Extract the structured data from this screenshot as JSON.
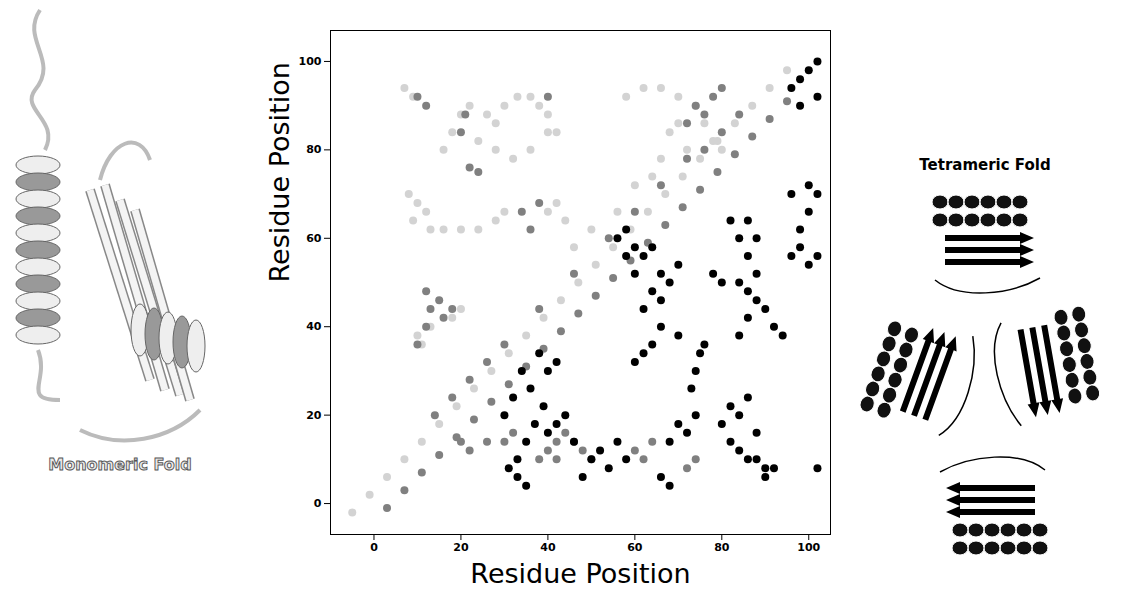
{
  "chart_data": {
    "type": "scatter",
    "xlabel": "Residue Position",
    "ylabel": "Residue Position",
    "xlim": [
      -10,
      105
    ],
    "ylim": [
      -7,
      107
    ],
    "xticks": [
      0,
      20,
      40,
      60,
      80,
      100
    ],
    "yticks": [
      0,
      20,
      40,
      60,
      80,
      100
    ],
    "series": [
      {
        "color": "#d3d3d3",
        "x": [
          -5,
          -1,
          3,
          7,
          11,
          15,
          19,
          23,
          27,
          31,
          35,
          39,
          43,
          47,
          51,
          55,
          59,
          63,
          67,
          71,
          75,
          79,
          83,
          87,
          91,
          95,
          8,
          10,
          12,
          9,
          13,
          16,
          20,
          24,
          28,
          30,
          10,
          11,
          13,
          16,
          18,
          20,
          22,
          26,
          28,
          30,
          33,
          36,
          38,
          40,
          24,
          28,
          32,
          36,
          40,
          42,
          40,
          42,
          44,
          58,
          62,
          66,
          70,
          74,
          76,
          78,
          80,
          70,
          72,
          64,
          66,
          68,
          60,
          56,
          50,
          46,
          18,
          20,
          7,
          9
        ],
        "y": [
          -2,
          2,
          6,
          10,
          14,
          18,
          22,
          26,
          30,
          34,
          38,
          42,
          46,
          50,
          54,
          58,
          62,
          66,
          70,
          74,
          78,
          82,
          86,
          90,
          94,
          98,
          70,
          68,
          66,
          64,
          62,
          62,
          62,
          62,
          64,
          66,
          38,
          36,
          40,
          80,
          84,
          88,
          90,
          88,
          86,
          90,
          92,
          92,
          90,
          88,
          82,
          80,
          78,
          80,
          84,
          84,
          66,
          68,
          64,
          92,
          94,
          94,
          92,
          90,
          86,
          82,
          80,
          86,
          80,
          74,
          78,
          84,
          72,
          66,
          62,
          58,
          42,
          44,
          94,
          92
        ]
      },
      {
        "color": "#808080",
        "x": [
          3,
          7,
          11,
          15,
          19,
          23,
          27,
          31,
          35,
          39,
          43,
          47,
          51,
          55,
          59,
          63,
          67,
          71,
          75,
          79,
          83,
          87,
          91,
          95,
          14,
          18,
          22,
          26,
          30,
          38,
          46,
          54,
          60,
          66,
          72,
          76,
          80,
          84,
          10,
          12,
          13,
          15,
          12,
          16,
          18,
          10,
          12,
          20,
          21,
          22,
          34,
          38,
          36,
          40,
          24,
          72,
          74,
          78,
          80,
          76,
          40,
          42,
          44,
          46,
          48,
          38,
          42,
          50,
          60,
          62,
          64,
          72,
          74,
          30,
          32,
          26,
          22,
          20
        ],
        "y": [
          -1,
          3,
          7,
          11,
          15,
          19,
          23,
          27,
          31,
          35,
          39,
          43,
          47,
          51,
          55,
          59,
          63,
          67,
          71,
          75,
          79,
          83,
          87,
          91,
          20,
          24,
          28,
          32,
          36,
          44,
          52,
          60,
          66,
          72,
          78,
          80,
          84,
          88,
          36,
          40,
          44,
          46,
          48,
          42,
          44,
          92,
          90,
          84,
          88,
          76,
          66,
          68,
          62,
          92,
          75,
          86,
          90,
          92,
          94,
          88,
          12,
          14,
          16,
          14,
          12,
          10,
          10,
          10,
          12,
          10,
          14,
          8,
          10,
          14,
          16,
          14,
          12,
          14
        ]
      },
      {
        "color": "#000000",
        "x": [
          31,
          33,
          35,
          33,
          35,
          37,
          39,
          36,
          40,
          38,
          42,
          34,
          30,
          32,
          40,
          42,
          44,
          46,
          50,
          52,
          54,
          56,
          58,
          48,
          66,
          68,
          60,
          62,
          64,
          66,
          62,
          64,
          60,
          58,
          56,
          60,
          58,
          62,
          66,
          68,
          70,
          64,
          66,
          72,
          74,
          73,
          74,
          75,
          70,
          76,
          80,
          82,
          84,
          86,
          88,
          90,
          92,
          84,
          86,
          82,
          88,
          84,
          86,
          88,
          90,
          92,
          94,
          86,
          88,
          86,
          88,
          84,
          82,
          86,
          80,
          84,
          78,
          96,
          98,
          100,
          98,
          100,
          96,
          100,
          102,
          102,
          96,
          98,
          100,
          102,
          102,
          98,
          102,
          90,
          68,
          70
        ],
        "y": [
          8,
          6,
          4,
          10,
          14,
          18,
          22,
          26,
          30,
          34,
          32,
          30,
          20,
          24,
          16,
          18,
          20,
          14,
          10,
          12,
          8,
          14,
          10,
          6,
          6,
          4,
          32,
          34,
          36,
          40,
          44,
          48,
          52,
          56,
          60,
          58,
          62,
          56,
          52,
          50,
          54,
          58,
          46,
          16,
          20,
          26,
          30,
          34,
          38,
          36,
          18,
          14,
          12,
          10,
          10,
          8,
          8,
          20,
          24,
          22,
          16,
          38,
          42,
          46,
          44,
          40,
          38,
          48,
          52,
          56,
          60,
          60,
          64,
          64,
          50,
          50,
          52,
          56,
          58,
          54,
          62,
          66,
          70,
          72,
          56,
          70,
          94,
          96,
          98,
          100,
          92,
          90,
          8,
          6,
          14,
          18
        ]
      }
    ]
  },
  "panels": {
    "left": {
      "label": "Monomeric Fold"
    },
    "right": {
      "title": "Tetrameric Fold"
    }
  }
}
